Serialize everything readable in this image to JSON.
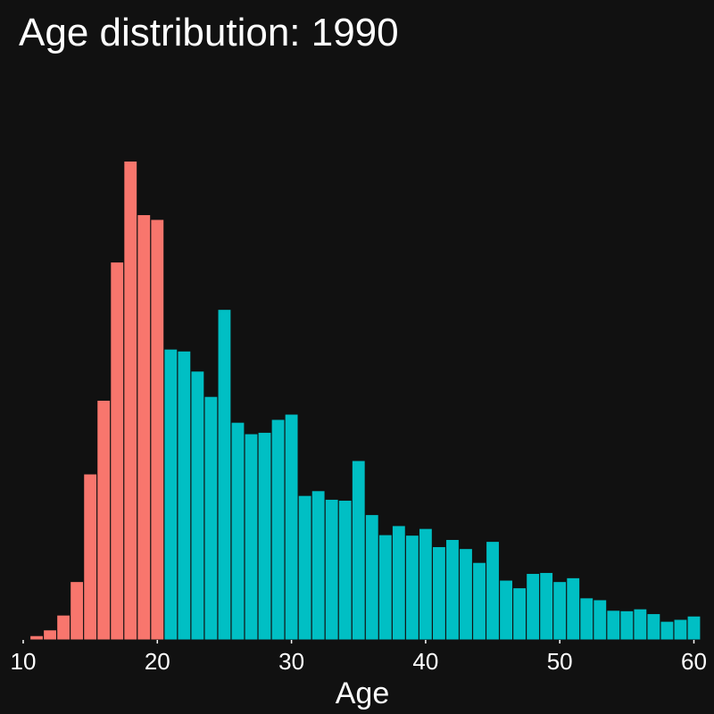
{
  "chart_data": {
    "type": "bar",
    "title": "Age distribution: 1990",
    "xlabel": "Age",
    "ylabel": "",
    "x_ticks": [
      10,
      20,
      30,
      40,
      50,
      60
    ],
    "xlim": [
      10,
      60.5
    ],
    "ylim": [
      0,
      1
    ],
    "grid": false,
    "y_axis_shown": false,
    "series": [
      {
        "color": "#F8766D",
        "x": [
          11,
          12,
          13,
          14,
          15,
          16,
          17,
          18,
          19,
          20
        ],
        "values": [
          0.008,
          0.02,
          0.051,
          0.121,
          0.346,
          0.5,
          0.789,
          1.0,
          0.888,
          0.878
        ]
      },
      {
        "color": "#00BFC4",
        "x": [
          21,
          22,
          23,
          24,
          25,
          26,
          27,
          28,
          29,
          30,
          31,
          32,
          33,
          34,
          35,
          36,
          37,
          38,
          39,
          40,
          41,
          42,
          43,
          44,
          45,
          46,
          47,
          48,
          49,
          50,
          51,
          52,
          53,
          54,
          55,
          56,
          57,
          58,
          59,
          60
        ],
        "values": [
          0.607,
          0.603,
          0.561,
          0.508,
          0.69,
          0.454,
          0.43,
          0.433,
          0.46,
          0.471,
          0.301,
          0.311,
          0.293,
          0.291,
          0.374,
          0.261,
          0.219,
          0.238,
          0.218,
          0.232,
          0.194,
          0.209,
          0.19,
          0.161,
          0.205,
          0.124,
          0.108,
          0.138,
          0.14,
          0.121,
          0.129,
          0.087,
          0.083,
          0.061,
          0.06,
          0.064,
          0.054,
          0.038,
          0.042,
          0.049
        ]
      }
    ]
  },
  "colors": {
    "background": "#111111",
    "text": "#ffffff"
  }
}
